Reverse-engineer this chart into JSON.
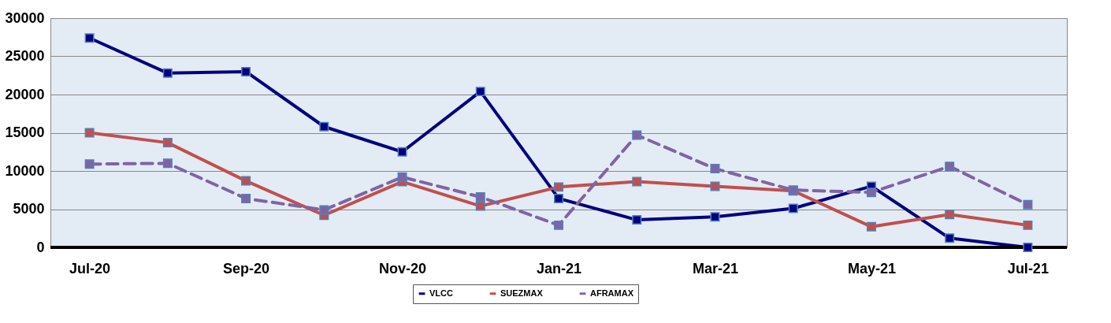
{
  "chart_data": {
    "type": "line",
    "categories": [
      "Jul-20",
      null,
      "Sep-20",
      null,
      "Nov-20",
      null,
      "Jan-21",
      null,
      "Mar-21",
      null,
      "May-21",
      null,
      "Jul-21"
    ],
    "ylim": [
      0,
      30000
    ],
    "yticks": [
      0,
      5000,
      10000,
      15000,
      20000,
      25000,
      30000
    ],
    "grid": "y",
    "legend": "bottom",
    "marker": "square",
    "series": [
      {
        "name": "VLCC",
        "color": "#000080",
        "line_style": "solid",
        "values": [
          27400,
          22800,
          23000,
          15800,
          12500,
          20400,
          6400,
          3600,
          4000,
          5100,
          8000,
          1200,
          0
        ]
      },
      {
        "name": "SUEZMAX",
        "color": "#c0504d",
        "line_style": "solid",
        "values": [
          15000,
          13700,
          8700,
          4200,
          8600,
          5400,
          7900,
          8600,
          8000,
          7400,
          2700,
          4300,
          2900
        ]
      },
      {
        "name": "AFRAMAX",
        "color": "#8064a2",
        "line_style": "dashed",
        "values": [
          10900,
          11000,
          6400,
          4900,
          9200,
          6600,
          2900,
          14700,
          10300,
          7500,
          7200,
          10600,
          5600
        ]
      }
    ]
  }
}
